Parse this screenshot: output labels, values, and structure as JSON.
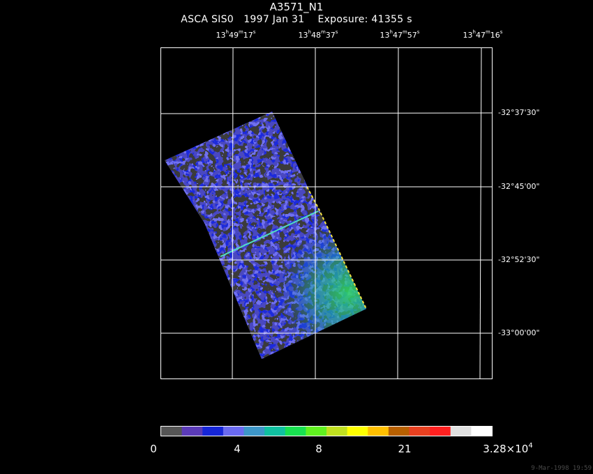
{
  "header": {
    "title": "A3571_N1",
    "subtitle": "ASCA SIS0   1997 Jan 31    Exposure: 41355 s"
  },
  "ra_ticks": [
    {
      "h": "13",
      "m": "49",
      "s": "17"
    },
    {
      "h": "13",
      "m": "48",
      "s": "37"
    },
    {
      "h": "13",
      "m": "47",
      "s": "57"
    },
    {
      "h": "13",
      "m": "47",
      "s": "16"
    }
  ],
  "dec_ticks": [
    "-32°37'30\"",
    "-32°45'00\"",
    "-32°52'30\"",
    "-33°00'00\""
  ],
  "colorbar": {
    "colors": [
      "#555555",
      "#5b3bb8",
      "#1626d8",
      "#6a6af0",
      "#3d96c8",
      "#10c0a0",
      "#18e050",
      "#60f020",
      "#c0e020",
      "#ffff00",
      "#ffc000",
      "#b86000",
      "#e84020",
      "#ff2020",
      "#e0e0e0",
      "#ffffff"
    ],
    "labels": [
      "0",
      "4",
      "8",
      "21"
    ],
    "max_mantissa": "3.28×10",
    "max_exponent": "4"
  },
  "footer": {
    "stamp": "9-Mar-1998 19:59"
  }
}
